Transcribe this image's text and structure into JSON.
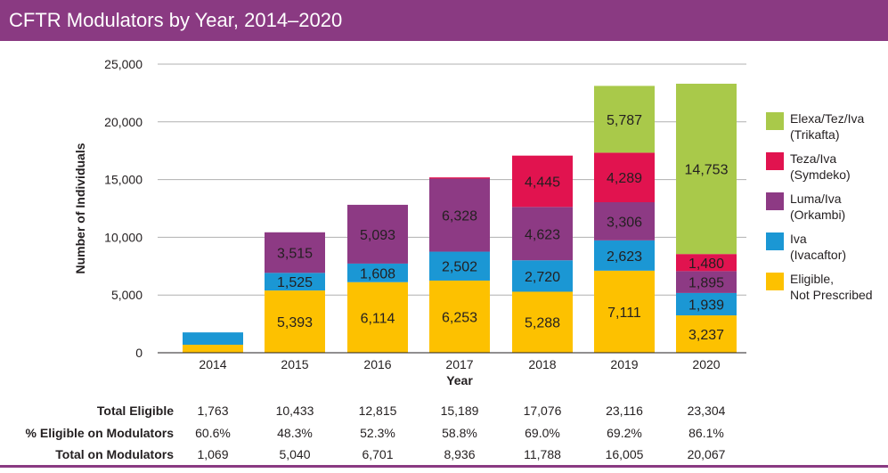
{
  "title": "CFTR Modulators by Year, 2014–2020",
  "colors": {
    "title_bg": "#8a3a82",
    "eligible": "#fdc100",
    "iva": "#1b97d4",
    "luma": "#8d3a84",
    "teza": "#e1134f",
    "elexa": "#a9c94a",
    "grid": "#b0b0b0"
  },
  "chart_data": {
    "type": "bar",
    "stacked": true,
    "categories": [
      "2014",
      "2015",
      "2016",
      "2017",
      "2018",
      "2019",
      "2020"
    ],
    "xlabel": "Year",
    "ylabel": "Number of Individuals",
    "ylim": [
      0,
      25000
    ],
    "yticks": [
      "0",
      "5,000",
      "10,000",
      "15,000",
      "20,000",
      "25,000"
    ],
    "grid": true,
    "legend_position": "right",
    "series": [
      {
        "key": "eligible",
        "name": "Eligible, Not Prescribed",
        "name_lines": [
          "Eligible,",
          "Not Prescribed"
        ],
        "values": [
          694,
          5393,
          6114,
          6253,
          5288,
          7111,
          3237
        ],
        "labels": [
          "",
          "5,393",
          "6,114",
          "6,253",
          "5,288",
          "7,111",
          "3,237"
        ]
      },
      {
        "key": "iva",
        "name": "Iva (Ivacaftor)",
        "name_lines": [
          "Iva",
          "(Ivacaftor)"
        ],
        "values": [
          1069,
          1525,
          1608,
          2502,
          2720,
          2623,
          1939
        ],
        "labels": [
          "",
          "1,525",
          "1,608",
          "2,502",
          "2,720",
          "2,623",
          "1,939"
        ]
      },
      {
        "key": "luma",
        "name": "Luma/Iva (Orkambi)",
        "name_lines": [
          "Luma/Iva",
          "(Orkambi)"
        ],
        "values": [
          0,
          3515,
          5093,
          6328,
          4623,
          3306,
          1895
        ],
        "labels": [
          "",
          "3,515",
          "5,093",
          "6,328",
          "4,623",
          "3,306",
          "1,895"
        ]
      },
      {
        "key": "teza",
        "name": "Teza/Iva (Symdeko)",
        "name_lines": [
          "Teza/Iva",
          "(Symdeko)"
        ],
        "values": [
          0,
          0,
          0,
          106,
          4445,
          4289,
          1480
        ],
        "labels": [
          "",
          "",
          "",
          "",
          "4,445",
          "4,289",
          "1,480"
        ]
      },
      {
        "key": "elexa",
        "name": "Elexa/Tez/Iva (Trikafta)",
        "name_lines": [
          "Elexa/Tez/Iva",
          "(Trikafta)"
        ],
        "values": [
          0,
          0,
          0,
          0,
          0,
          5787,
          14753
        ],
        "labels": [
          "",
          "",
          "",
          "",
          "",
          "5,787",
          "14,753"
        ]
      }
    ]
  },
  "summary": {
    "rows": [
      {
        "label": "Total Eligible",
        "values": [
          "1,763",
          "10,433",
          "12,815",
          "15,189",
          "17,076",
          "23,116",
          "23,304"
        ]
      },
      {
        "label": "% Eligible on Modulators",
        "values": [
          "60.6%",
          "48.3%",
          "52.3%",
          "58.8%",
          "69.0%",
          "69.2%",
          "86.1%"
        ]
      },
      {
        "label": "Total on Modulators",
        "values": [
          "1,069",
          "5,040",
          "6,701",
          "8,936",
          "11,788",
          "16,005",
          "20,067"
        ]
      }
    ]
  }
}
